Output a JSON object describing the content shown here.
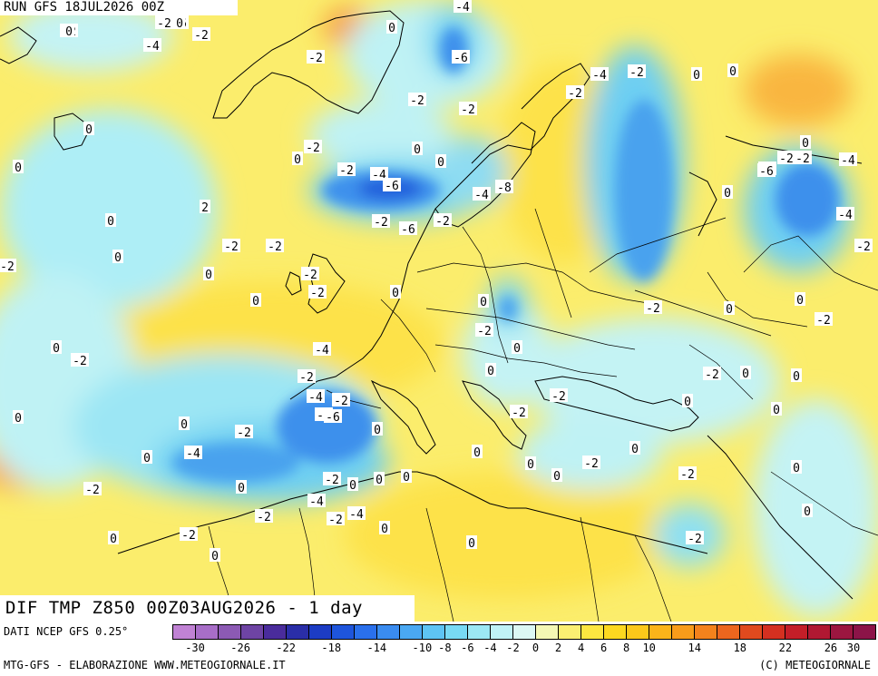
{
  "header": {
    "run_label": "RUN GFS 18JUL2026 00Z",
    "field_label": "DIF TMP Z850 00Z03AUG2026 - 1 day"
  },
  "footer": {
    "data_source": "DATI NCEP GFS 0.25°",
    "credits_left": "MTG-GFS - ELABORAZIONE WWW.METEOGIORNALE.IT",
    "credits_right": "(C) METEOGIORNALE"
  },
  "colorbar": {
    "colors": [
      "#c082d4",
      "#a86ec8",
      "#8c5ab4",
      "#6e44a4",
      "#4a2c9c",
      "#2a2ea8",
      "#1c3cc4",
      "#1e55dc",
      "#2a70ec",
      "#3a8cf0",
      "#4aa8f2",
      "#5ec4f4",
      "#78daf4",
      "#9ce8f4",
      "#c0f2f6",
      "#dcf8f4",
      "#f4f8b4",
      "#fbef72",
      "#fde640",
      "#fdd820",
      "#fcc81a",
      "#fbb41a",
      "#f89c1a",
      "#f4821c",
      "#ec661e",
      "#e04a1e",
      "#d43020",
      "#c41e28",
      "#b01832",
      "#9c1640",
      "#8c1448"
    ],
    "ticks": [
      "-30",
      "-26",
      "-22",
      "-18",
      "-14",
      "-10",
      "-8",
      "-6",
      "-4",
      "-2",
      "0",
      "2",
      "4",
      "6",
      "8",
      "10",
      "14",
      "18",
      "22",
      "26",
      "30"
    ]
  },
  "map_labels": [
    "-2",
    "-6",
    "-2",
    "-4",
    "-4",
    "-2",
    "-2",
    "-2",
    "-6",
    "0",
    "-2",
    "-2",
    "0",
    "0",
    "-4",
    "-2",
    "0",
    "0",
    "-2",
    "0",
    "0",
    "-2",
    "-4",
    "-6",
    "-8",
    "0",
    "-2",
    "-6",
    "-4",
    "-2",
    "-4",
    "-2",
    "-6",
    "-2",
    "0",
    "-4",
    "-2",
    "-4",
    "0",
    "2",
    "0",
    "0",
    "-2",
    "-2",
    "-2",
    "0",
    "-2",
    "0",
    "-2",
    "-4",
    "0",
    "0",
    "-2",
    "0",
    "-2",
    "0",
    "-2",
    "0",
    "0",
    "-2",
    "0",
    "-2",
    "-2",
    "0",
    "-2",
    "-4",
    "-2",
    "-6",
    "0",
    "-2",
    "-2",
    "0",
    "0",
    "0",
    "0",
    "0",
    "-2",
    "0",
    "-4",
    "-2",
    "0",
    "-2",
    "-4",
    "-2",
    "-4",
    "0",
    "0",
    "0",
    "0",
    "-2",
    "0",
    "0",
    "0",
    "0",
    "0",
    "-2",
    "0",
    "-2",
    "-2",
    "0",
    "0",
    "-2",
    "0",
    "0",
    "0"
  ]
}
